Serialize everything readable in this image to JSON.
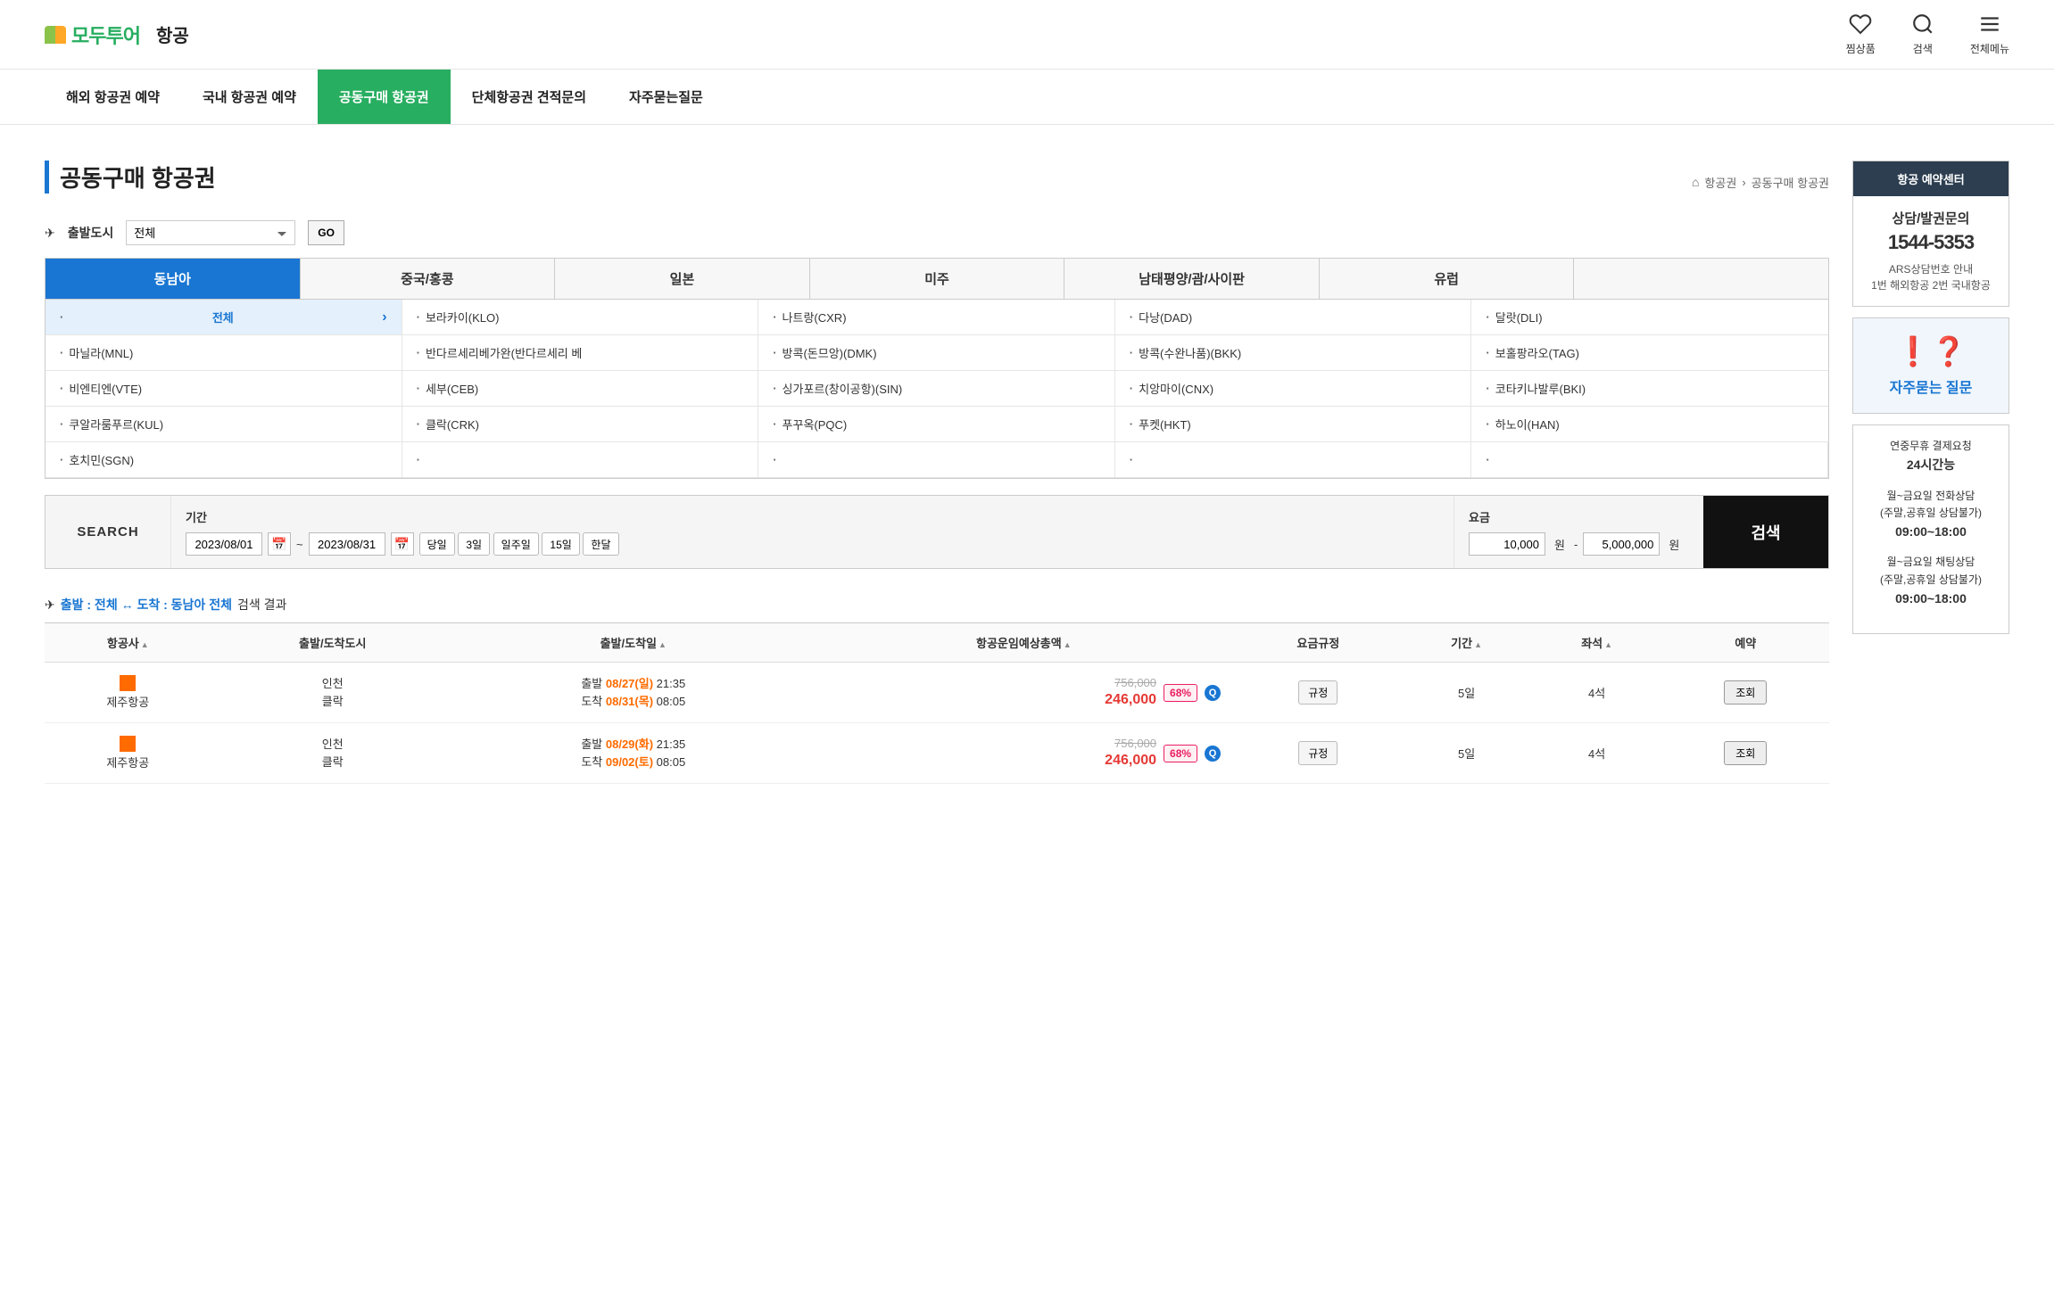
{
  "header": {
    "logo_text": "모두투어",
    "title": "항공",
    "icons": {
      "wishlist": "찜상품",
      "search": "검색",
      "menu": "전체메뉴"
    }
  },
  "nav": [
    "해외 항공권 예약",
    "국내 항공권 예약",
    "공동구매 항공권",
    "단체항공권 견적문의",
    "자주묻는질문"
  ],
  "nav_active": 2,
  "page_title": "공동구매 항공권",
  "breadcrumb": {
    "home": "항공권",
    "current": "공동구매 항공권"
  },
  "city_filter": {
    "label": "출발도시",
    "select_value": "전체",
    "go": "GO"
  },
  "region_tabs": [
    "동남아",
    "중국/홍콩",
    "일본",
    "미주",
    "남태평양/괌/사이판",
    "유럽",
    ""
  ],
  "region_active": 0,
  "destinations": [
    "전체",
    "보라카이(KLO)",
    "나트랑(CXR)",
    "다낭(DAD)",
    "달랏(DLI)",
    "마닐라(MNL)",
    "반다르세리베가완(반다르세리 베",
    "방콕(돈므앙)(DMK)",
    "방콕(수완나품)(BKK)",
    "보홀팡라오(TAG)",
    "비엔티엔(VTE)",
    "세부(CEB)",
    "싱가포르(창이공항)(SIN)",
    "치앙마이(CNX)",
    "코타키나발루(BKI)",
    "쿠알라룸푸르(KUL)",
    "클락(CRK)",
    "푸꾸옥(PQC)",
    "푸켓(HKT)",
    "하노이(HAN)",
    "호치민(SGN)",
    "",
    "",
    "",
    ""
  ],
  "dest_active": 0,
  "search": {
    "label": "SEARCH",
    "period_label": "기간",
    "date_from": "2023/08/01",
    "date_to": "2023/08/31",
    "quick": [
      "당일",
      "3일",
      "일주일",
      "15일",
      "한달"
    ],
    "price_label": "요금",
    "price_min": "10,000",
    "price_max": "5,000,000",
    "won": "원",
    "btn": "검색"
  },
  "result_text": {
    "prefix": "출발 : 전체 ↔ 도착 : 동남아 전체",
    "suffix": "검색 결과"
  },
  "table": {
    "headers": [
      "항공사",
      "출발/도착도시",
      "출발/도착일",
      "항공운임예상총액",
      "요금규정",
      "기간",
      "좌석",
      "예약"
    ],
    "rows": [
      {
        "airline": "제주항공",
        "dep_city": "인천",
        "arr_city": "클락",
        "dep_label": "출발",
        "dep_date": "08/27(일)",
        "dep_time": "21:35",
        "arr_label": "도착",
        "arr_date": "08/31(목)",
        "arr_time": "08:05",
        "price_orig": "756,000",
        "price_now": "246,000",
        "pct": "68%",
        "rule": "규정",
        "dur": "5일",
        "seat": "4석",
        "view": "조회"
      },
      {
        "airline": "제주항공",
        "dep_city": "인천",
        "arr_city": "클락",
        "dep_label": "출발",
        "dep_date": "08/29(화)",
        "dep_time": "21:35",
        "arr_label": "도착",
        "arr_date": "09/02(토)",
        "arr_time": "08:05",
        "price_orig": "756,000",
        "price_now": "246,000",
        "pct": "68%",
        "rule": "규정",
        "dur": "5일",
        "seat": "4석",
        "view": "조회"
      }
    ]
  },
  "sidebar": {
    "header": "항공 예약센터",
    "phone_title": "상담/발권문의",
    "phone_num": "1544-5353",
    "phone_sub1": "ARS상담번호 안내",
    "phone_sub2": "1번 해외항공 2번 국내항공",
    "faq_text": "자주묻는 질문",
    "info1_a": "연중무휴 결제요청",
    "info1_b": "24시간능",
    "info2_a": "월~금요일 전화상담",
    "info2_b": "(주말,공휴일 상담불가)",
    "info2_c": "09:00~18:00",
    "info3_a": "월~금요일 채팅상담",
    "info3_b": "(주말,공휴일 상담불가)",
    "info3_c": "09:00~18:00"
  }
}
